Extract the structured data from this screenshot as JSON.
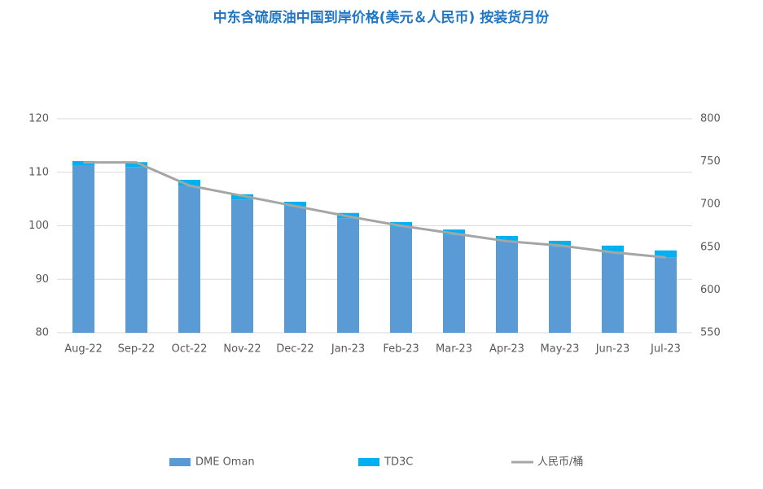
{
  "chart_data": {
    "type": "bar",
    "stacked": true,
    "title": "中东含硫原油中国到岸价格(美元＆人民币) 按装货月份",
    "categories": [
      "Aug-22",
      "Sep-22",
      "Oct-22",
      "Nov-22",
      "Dec-22",
      "Jan-23",
      "Feb-23",
      "Mar-23",
      "Apr-23",
      "May-23",
      "Jun-23",
      "Jul-23"
    ],
    "series": [
      {
        "name": "DME Oman",
        "color": "#5b9bd5",
        "values": [
          111.2,
          111.0,
          107.4,
          104.9,
          103.6,
          101.4,
          99.8,
          98.3,
          97.2,
          96.1,
          95.2,
          94.1
        ]
      },
      {
        "name": "TD3C",
        "color": "#00b0f0",
        "values": [
          0.9,
          0.9,
          1.2,
          1.0,
          0.9,
          1.0,
          0.9,
          1.0,
          0.9,
          1.1,
          1.1,
          1.3
        ]
      },
      {
        "name": "人民币/桶",
        "color": "#a5a5a5",
        "type": "line",
        "axis": "y2",
        "values": [
          749,
          749,
          722,
          710,
          698,
          686,
          675,
          666,
          657,
          652,
          644,
          638
        ]
      }
    ],
    "ylim": [
      80,
      120
    ],
    "yticks": [
      80,
      90,
      100,
      110,
      120
    ],
    "y2lim": [
      550,
      800
    ],
    "y2ticks": [
      550,
      600,
      650,
      700,
      750,
      800
    ],
    "grid": true,
    "legend": "bottom"
  }
}
